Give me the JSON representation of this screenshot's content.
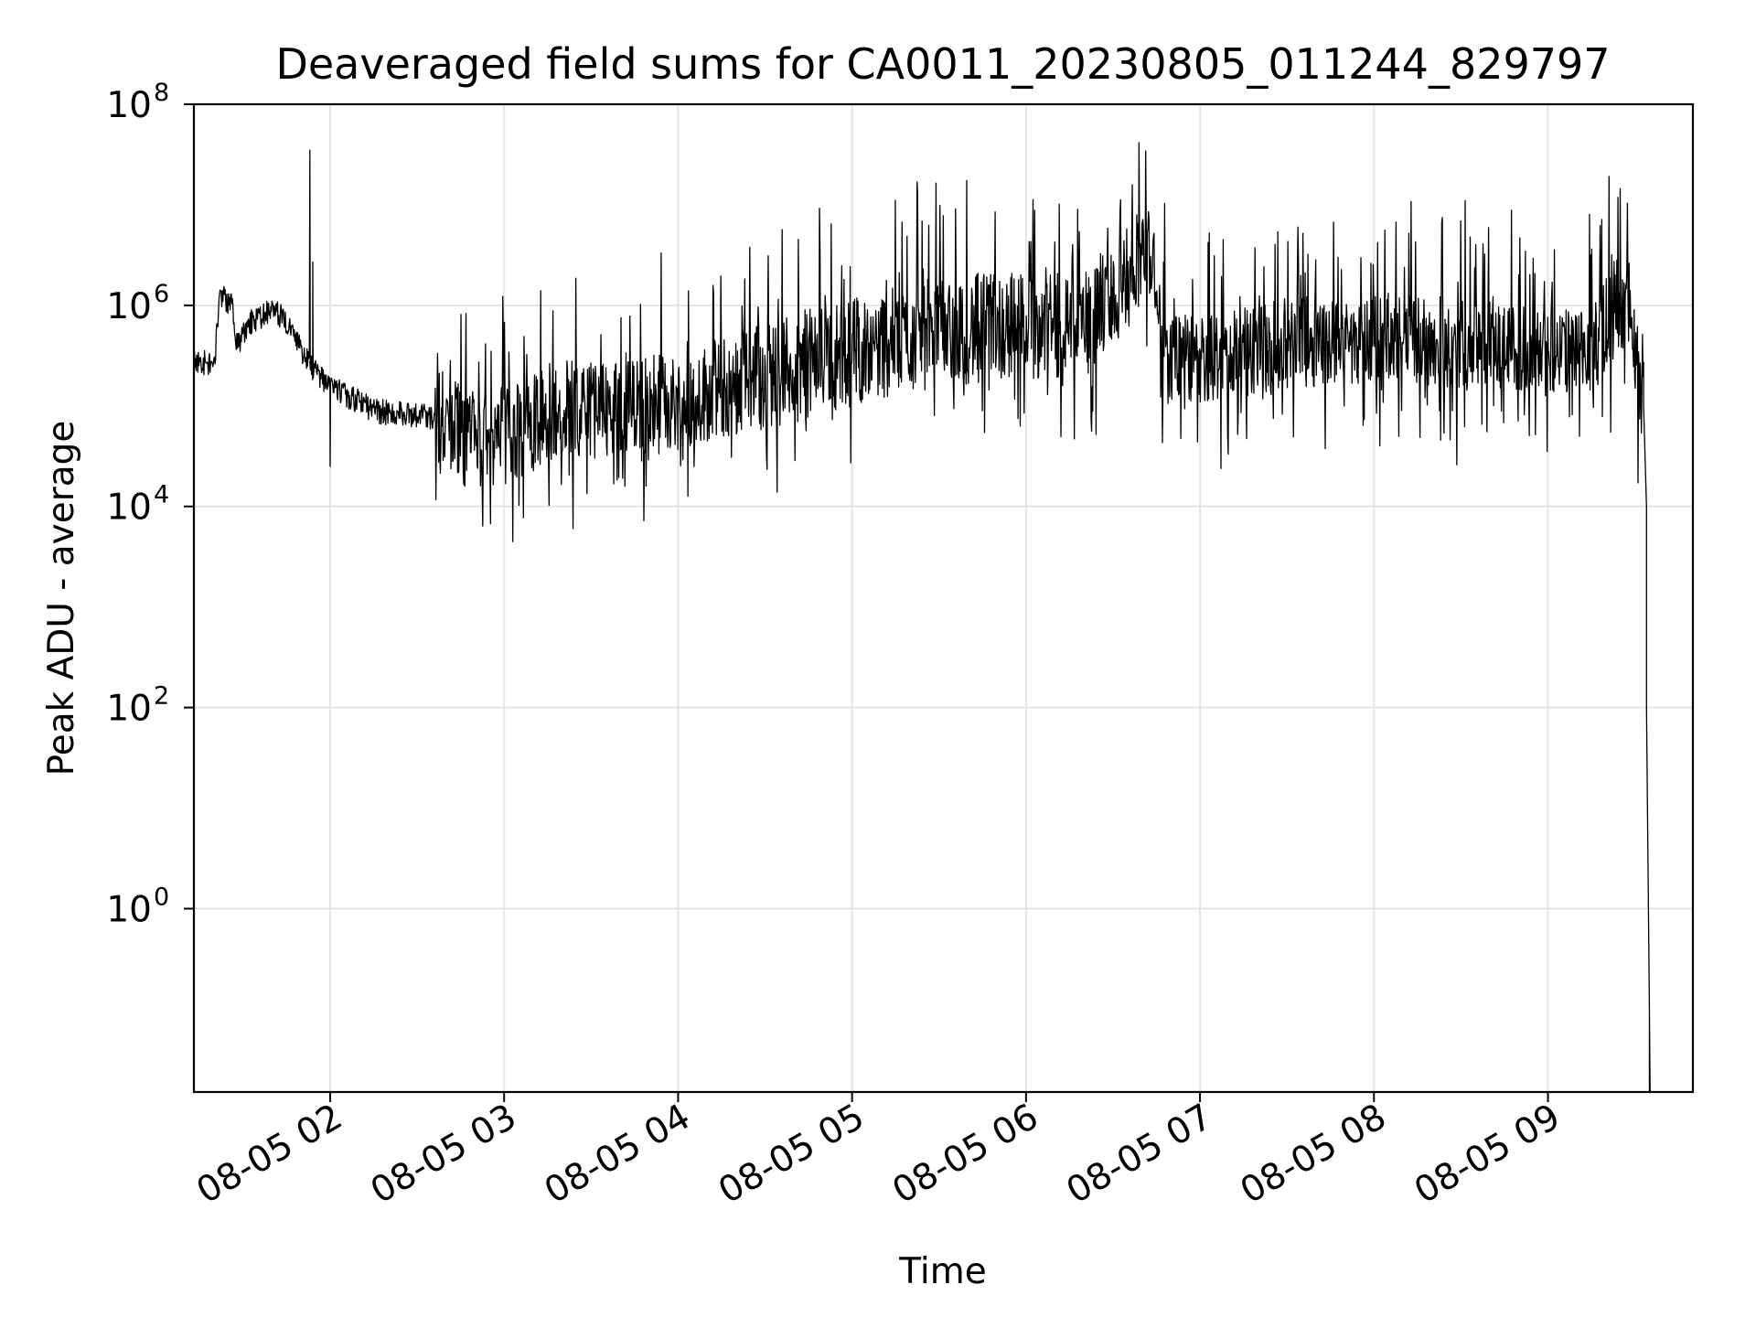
{
  "chart_data": {
    "type": "line",
    "title": "Deaveraged field sums for CA0011_20230805_011244_829797",
    "xlabel": "Time",
    "ylabel": "Peak ADU - average",
    "y_scale": "log",
    "x_unit": "hours (2023-08-05 local time axis)",
    "xlim": [
      "08-05 01:13",
      "08-05 09:50"
    ],
    "ylim": [
      0.015,
      100000000
    ],
    "grid": true,
    "legend": "none",
    "line_color": "#000000",
    "grid_color": "#e6e6e6",
    "x_ticks": [
      {
        "value": "08-05 02:00",
        "label": "08-05 02"
      },
      {
        "value": "08-05 03:00",
        "label": "08-05 03"
      },
      {
        "value": "08-05 04:00",
        "label": "08-05 04"
      },
      {
        "value": "08-05 05:00",
        "label": "08-05 05"
      },
      {
        "value": "08-05 06:00",
        "label": "08-05 06"
      },
      {
        "value": "08-05 07:00",
        "label": "08-05 07"
      },
      {
        "value": "08-05 08:00",
        "label": "08-05 08"
      },
      {
        "value": "08-05 09:00",
        "label": "08-05 09"
      }
    ],
    "y_ticks": [
      {
        "value": 1,
        "base": "10",
        "exp": "0"
      },
      {
        "value": 100,
        "base": "10",
        "exp": "2"
      },
      {
        "value": 10000,
        "base": "10",
        "exp": "4"
      },
      {
        "value": 1000000,
        "base": "10",
        "exp": "6"
      },
      {
        "value": 100000000,
        "base": "10",
        "exp": "8"
      }
    ],
    "series": [
      {
        "baseline": [
          [
            "08-05 01:13",
            280000
          ],
          [
            "08-05 01:20",
            260000
          ],
          [
            "08-05 01:22",
            1300000
          ],
          [
            "08-05 01:26",
            1000000
          ],
          [
            "08-05 01:28",
            400000
          ],
          [
            "08-05 01:33",
            700000
          ],
          [
            "08-05 01:40",
            900000
          ],
          [
            "08-05 01:45",
            700000
          ],
          [
            "08-05 01:50",
            350000
          ],
          [
            "08-05 01:55",
            220000
          ],
          [
            "08-05 02:00",
            150000
          ],
          [
            "08-05 02:05",
            130000
          ],
          [
            "08-05 02:10",
            110000
          ],
          [
            "08-05 02:15",
            90000
          ],
          [
            "08-05 02:20",
            85000
          ],
          [
            "08-05 02:30",
            82000
          ],
          [
            "08-05 02:40",
            70000
          ],
          [
            "08-05 02:45",
            50000
          ],
          [
            "08-05 02:50",
            45000
          ],
          [
            "08-05 03:00",
            52000
          ],
          [
            "08-05 03:15",
            85000
          ],
          [
            "08-05 03:30",
            95000
          ],
          [
            "08-05 03:45",
            95000
          ],
          [
            "08-05 04:00",
            110000
          ],
          [
            "08-05 04:15",
            150000
          ],
          [
            "08-05 04:30",
            200000
          ],
          [
            "08-05 05:00",
            350000
          ],
          [
            "08-05 05:30",
            550000
          ],
          [
            "08-05 06:00",
            650000
          ],
          [
            "08-05 06:20",
            700000
          ],
          [
            "08-05 06:30",
            1200000
          ],
          [
            "08-05 06:38",
            3000000
          ],
          [
            "08-05 06:44",
            3500000
          ],
          [
            "08-05 06:46",
            300000
          ],
          [
            "08-05 07:00",
            280000
          ],
          [
            "08-05 07:30",
            420000
          ],
          [
            "08-05 08:00",
            480000
          ],
          [
            "08-05 08:30",
            420000
          ],
          [
            "08-05 09:00",
            350000
          ],
          [
            "08-05 09:15",
            300000
          ],
          [
            "08-05 09:23",
            1100000
          ],
          [
            "08-05 09:28",
            1000000
          ],
          [
            "08-05 09:31",
            250000
          ],
          [
            "08-05 09:33",
            100000
          ],
          [
            "08-05 09:34",
            10000
          ],
          [
            "08-05 09:34",
            100
          ],
          [
            "08-05 09:35",
            0.1
          ],
          [
            "08-05 09:35",
            0.015
          ]
        ],
        "spikes": [
          [
            "08-05 01:53",
            35000000
          ],
          [
            "08-05 01:54",
            2700000
          ],
          [
            "08-05 09:22",
            3200000
          ],
          [
            "08-05 06:40",
            6500000
          ],
          [
            "08-05 02:00",
            25000
          ],
          [
            "08-05 02:43",
            30000
          ]
        ]
      }
    ]
  }
}
